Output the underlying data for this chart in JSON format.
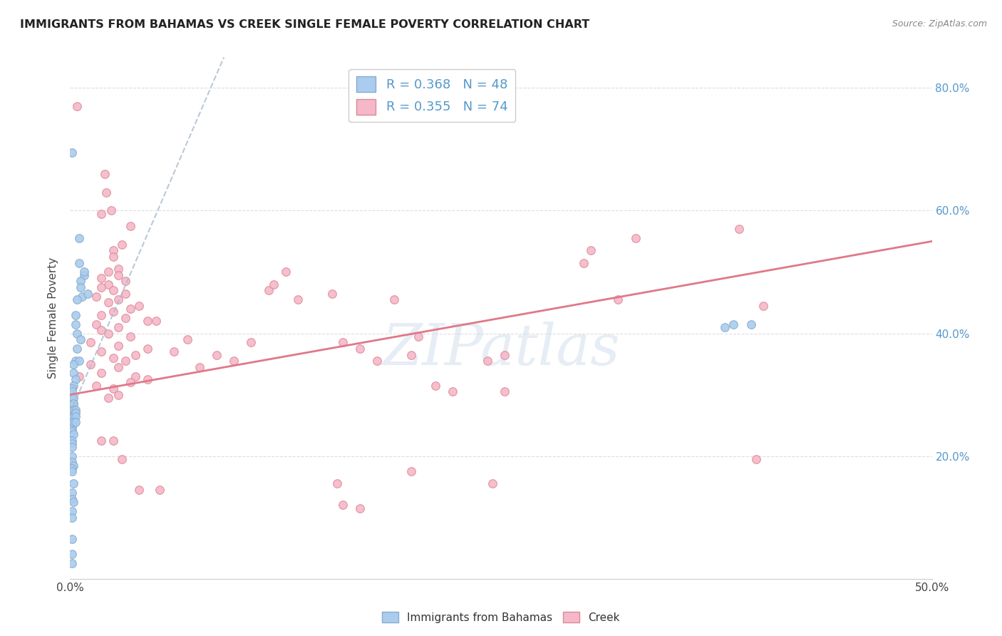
{
  "title": "IMMIGRANTS FROM BAHAMAS VS CREEK SINGLE FEMALE POVERTY CORRELATION CHART",
  "source": "Source: ZipAtlas.com",
  "ylabel": "Single Female Poverty",
  "xlim": [
    0.0,
    0.5
  ],
  "ylim": [
    0.0,
    0.85
  ],
  "color_bahamas_fill": "#aaccee",
  "color_bahamas_edge": "#88aacc",
  "color_creek_fill": "#f4b8c8",
  "color_creek_edge": "#e08898",
  "color_bahamas_trendline": "#aabbcc",
  "color_creek_trendline": "#e07888",
  "watermark": "ZIPatlas",
  "bahamas_points": [
    [
      0.001,
      0.695
    ],
    [
      0.005,
      0.555
    ],
    [
      0.005,
      0.515
    ],
    [
      0.008,
      0.495
    ],
    [
      0.008,
      0.5
    ],
    [
      0.006,
      0.485
    ],
    [
      0.006,
      0.475
    ],
    [
      0.007,
      0.46
    ],
    [
      0.01,
      0.465
    ],
    [
      0.004,
      0.455
    ],
    [
      0.003,
      0.43
    ],
    [
      0.003,
      0.415
    ],
    [
      0.004,
      0.4
    ],
    [
      0.006,
      0.39
    ],
    [
      0.004,
      0.375
    ],
    [
      0.003,
      0.355
    ],
    [
      0.005,
      0.355
    ],
    [
      0.002,
      0.35
    ],
    [
      0.002,
      0.335
    ],
    [
      0.003,
      0.325
    ],
    [
      0.002,
      0.315
    ],
    [
      0.001,
      0.31
    ],
    [
      0.001,
      0.305
    ],
    [
      0.001,
      0.295
    ],
    [
      0.002,
      0.285
    ],
    [
      0.001,
      0.285
    ],
    [
      0.001,
      0.275
    ],
    [
      0.001,
      0.265
    ],
    [
      0.001,
      0.27
    ],
    [
      0.001,
      0.28
    ],
    [
      0.001,
      0.275
    ],
    [
      0.001,
      0.265
    ],
    [
      0.001,
      0.255
    ],
    [
      0.001,
      0.25
    ],
    [
      0.001,
      0.255
    ],
    [
      0.001,
      0.26
    ],
    [
      0.001,
      0.265
    ],
    [
      0.001,
      0.27
    ],
    [
      0.001,
      0.275
    ],
    [
      0.001,
      0.26
    ],
    [
      0.001,
      0.255
    ],
    [
      0.001,
      0.25
    ],
    [
      0.001,
      0.245
    ],
    [
      0.001,
      0.24
    ],
    [
      0.002,
      0.235
    ],
    [
      0.001,
      0.225
    ],
    [
      0.001,
      0.22
    ],
    [
      0.001,
      0.215
    ],
    [
      0.001,
      0.2
    ],
    [
      0.001,
      0.19
    ],
    [
      0.002,
      0.185
    ],
    [
      0.001,
      0.18
    ],
    [
      0.001,
      0.175
    ],
    [
      0.002,
      0.155
    ],
    [
      0.001,
      0.14
    ],
    [
      0.001,
      0.13
    ],
    [
      0.002,
      0.125
    ],
    [
      0.001,
      0.11
    ],
    [
      0.001,
      0.1
    ],
    [
      0.001,
      0.065
    ],
    [
      0.001,
      0.04
    ],
    [
      0.001,
      0.025
    ],
    [
      0.385,
      0.415
    ],
    [
      0.395,
      0.415
    ],
    [
      0.38,
      0.41
    ],
    [
      0.002,
      0.295
    ],
    [
      0.002,
      0.285
    ],
    [
      0.002,
      0.275
    ],
    [
      0.002,
      0.265
    ],
    [
      0.003,
      0.275
    ],
    [
      0.003,
      0.27
    ],
    [
      0.003,
      0.265
    ],
    [
      0.002,
      0.255
    ],
    [
      0.003,
      0.255
    ]
  ],
  "creek_points": [
    [
      0.004,
      0.77
    ],
    [
      0.02,
      0.66
    ],
    [
      0.021,
      0.63
    ],
    [
      0.024,
      0.6
    ],
    [
      0.018,
      0.595
    ],
    [
      0.035,
      0.575
    ],
    [
      0.03,
      0.545
    ],
    [
      0.025,
      0.535
    ],
    [
      0.025,
      0.525
    ],
    [
      0.028,
      0.505
    ],
    [
      0.022,
      0.5
    ],
    [
      0.028,
      0.495
    ],
    [
      0.018,
      0.49
    ],
    [
      0.032,
      0.485
    ],
    [
      0.022,
      0.48
    ],
    [
      0.018,
      0.475
    ],
    [
      0.025,
      0.47
    ],
    [
      0.032,
      0.465
    ],
    [
      0.015,
      0.46
    ],
    [
      0.028,
      0.455
    ],
    [
      0.022,
      0.45
    ],
    [
      0.04,
      0.445
    ],
    [
      0.035,
      0.44
    ],
    [
      0.025,
      0.435
    ],
    [
      0.018,
      0.43
    ],
    [
      0.032,
      0.425
    ],
    [
      0.045,
      0.42
    ],
    [
      0.05,
      0.42
    ],
    [
      0.015,
      0.415
    ],
    [
      0.028,
      0.41
    ],
    [
      0.018,
      0.405
    ],
    [
      0.022,
      0.4
    ],
    [
      0.035,
      0.395
    ],
    [
      0.012,
      0.385
    ],
    [
      0.028,
      0.38
    ],
    [
      0.045,
      0.375
    ],
    [
      0.018,
      0.37
    ],
    [
      0.038,
      0.365
    ],
    [
      0.025,
      0.36
    ],
    [
      0.032,
      0.355
    ],
    [
      0.012,
      0.35
    ],
    [
      0.028,
      0.345
    ],
    [
      0.018,
      0.335
    ],
    [
      0.038,
      0.33
    ],
    [
      0.005,
      0.33
    ],
    [
      0.045,
      0.325
    ],
    [
      0.035,
      0.32
    ],
    [
      0.015,
      0.315
    ],
    [
      0.025,
      0.31
    ],
    [
      0.028,
      0.3
    ],
    [
      0.022,
      0.295
    ],
    [
      0.06,
      0.37
    ],
    [
      0.068,
      0.39
    ],
    [
      0.075,
      0.345
    ],
    [
      0.085,
      0.365
    ],
    [
      0.095,
      0.355
    ],
    [
      0.105,
      0.385
    ],
    [
      0.115,
      0.47
    ],
    [
      0.118,
      0.48
    ],
    [
      0.125,
      0.5
    ],
    [
      0.132,
      0.455
    ],
    [
      0.152,
      0.465
    ],
    [
      0.158,
      0.385
    ],
    [
      0.168,
      0.375
    ],
    [
      0.178,
      0.355
    ],
    [
      0.188,
      0.455
    ],
    [
      0.202,
      0.395
    ],
    [
      0.198,
      0.365
    ],
    [
      0.212,
      0.315
    ],
    [
      0.222,
      0.305
    ],
    [
      0.242,
      0.355
    ],
    [
      0.252,
      0.365
    ],
    [
      0.298,
      0.515
    ],
    [
      0.302,
      0.535
    ],
    [
      0.318,
      0.455
    ],
    [
      0.328,
      0.555
    ],
    [
      0.388,
      0.57
    ],
    [
      0.018,
      0.225
    ],
    [
      0.025,
      0.225
    ],
    [
      0.03,
      0.195
    ],
    [
      0.04,
      0.145
    ],
    [
      0.052,
      0.145
    ],
    [
      0.198,
      0.175
    ],
    [
      0.398,
      0.195
    ],
    [
      0.158,
      0.12
    ],
    [
      0.168,
      0.115
    ],
    [
      0.402,
      0.445
    ],
    [
      0.252,
      0.305
    ],
    [
      0.155,
      0.155
    ],
    [
      0.245,
      0.155
    ]
  ]
}
